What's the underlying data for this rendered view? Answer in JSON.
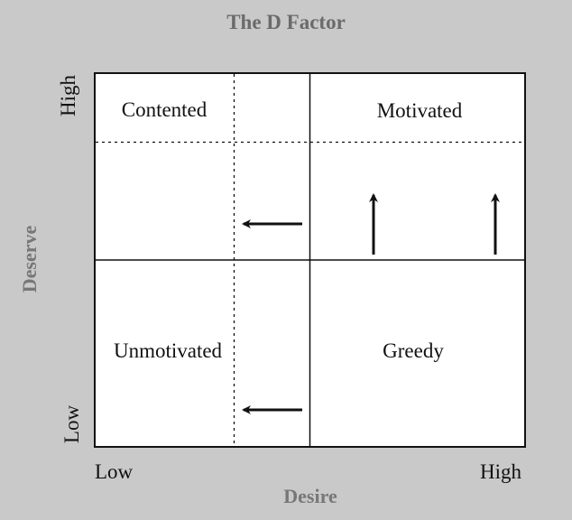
{
  "title": "The D Factor",
  "axes": {
    "x": {
      "label": "Desire",
      "low": "Low",
      "high": "High"
    },
    "y": {
      "label": "Deserve",
      "low": "Low",
      "high": "High"
    }
  },
  "quadrants": {
    "top_left": "Contented",
    "top_right": "Motivated",
    "bottom_left": "Unmotivated",
    "bottom_right": "Greedy"
  },
  "colors": {
    "background": "#c9c9c9",
    "plot": "#ffffff",
    "line": "#111111",
    "axis_label": "#777777"
  },
  "arrows": [
    {
      "region": "upper-left",
      "direction": "left"
    },
    {
      "region": "bottom-left",
      "direction": "left"
    },
    {
      "region": "upper-right",
      "direction": "up"
    },
    {
      "region": "upper-right",
      "direction": "up"
    }
  ]
}
